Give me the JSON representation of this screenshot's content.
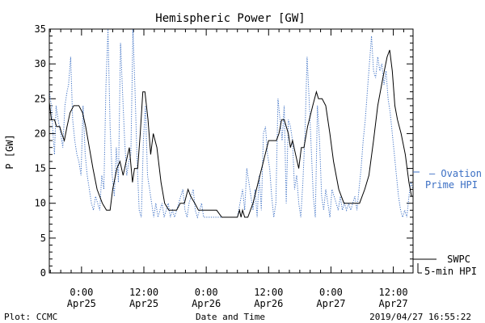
{
  "chart_data": {
    "type": "line",
    "title": "Hemispheric Power [GW]",
    "ylabel": "P [GW]",
    "xlabel": "Date and Time",
    "ylim": [
      0,
      35
    ],
    "yticks": [
      0,
      5,
      10,
      15,
      20,
      25,
      30,
      35
    ],
    "xlim_hours": [
      -6.2,
      63.8
    ],
    "xticks": [
      {
        "hour": 0,
        "time": "0:00",
        "date": "Apr25"
      },
      {
        "hour": 12,
        "time": "12:00",
        "date": "Apr25"
      },
      {
        "hour": 24,
        "time": "0:00",
        "date": "Apr26"
      },
      {
        "hour": 36,
        "time": "12:00",
        "date": "Apr26"
      },
      {
        "hour": 48,
        "time": "0:00",
        "date": "Apr27"
      },
      {
        "hour": 60,
        "time": "12:00",
        "date": "Apr27"
      }
    ],
    "x_minor_step_hours": 2,
    "y_minor_step": 1,
    "series": [
      {
        "name": "SWPC 5-min HPI",
        "color": "#000000",
        "style": "solid",
        "points": [
          [
            -6.2,
            24.5
          ],
          [
            -5.8,
            22
          ],
          [
            -5.2,
            22
          ],
          [
            -4.8,
            21
          ],
          [
            -4.2,
            21
          ],
          [
            -3.8,
            20
          ],
          [
            -3.3,
            19
          ],
          [
            -2.8,
            21
          ],
          [
            -2.2,
            23
          ],
          [
            -1.5,
            24
          ],
          [
            -0.5,
            24
          ],
          [
            0.2,
            23
          ],
          [
            0.8,
            21
          ],
          [
            1.5,
            18
          ],
          [
            2.2,
            15
          ],
          [
            3,
            12
          ],
          [
            4,
            10
          ],
          [
            4.8,
            9
          ],
          [
            5.5,
            9
          ],
          [
            6,
            12
          ],
          [
            6.8,
            15
          ],
          [
            7.4,
            16
          ],
          [
            8,
            14
          ],
          [
            8.6,
            16
          ],
          [
            9.2,
            18
          ],
          [
            9.8,
            13
          ],
          [
            10.2,
            15
          ],
          [
            10.8,
            15
          ],
          [
            11.3,
            20
          ],
          [
            11.8,
            26
          ],
          [
            12.2,
            26
          ],
          [
            12.8,
            22
          ],
          [
            13.3,
            17
          ],
          [
            13.8,
            20
          ],
          [
            14.5,
            18
          ],
          [
            15.3,
            13
          ],
          [
            16,
            10
          ],
          [
            16.8,
            9
          ],
          [
            17.6,
            9
          ],
          [
            18.3,
            9
          ],
          [
            19,
            10
          ],
          [
            19.8,
            10
          ],
          [
            20.5,
            12
          ],
          [
            21,
            11
          ],
          [
            21.8,
            10
          ],
          [
            22.5,
            9
          ],
          [
            24,
            9
          ],
          [
            26,
            9
          ],
          [
            27,
            8
          ],
          [
            29,
            8
          ],
          [
            30,
            8
          ],
          [
            30.4,
            9
          ],
          [
            30.7,
            8
          ],
          [
            31,
            9
          ],
          [
            31.4,
            8
          ],
          [
            32,
            8
          ],
          [
            33,
            10
          ],
          [
            34,
            13
          ],
          [
            35,
            16
          ],
          [
            36,
            19
          ],
          [
            37.5,
            19
          ],
          [
            38,
            20
          ],
          [
            38.5,
            22
          ],
          [
            39,
            22
          ],
          [
            39.8,
            20
          ],
          [
            40.2,
            18
          ],
          [
            40.6,
            19
          ],
          [
            41.2,
            17
          ],
          [
            41.8,
            15
          ],
          [
            42.3,
            18
          ],
          [
            42.8,
            18
          ],
          [
            43.5,
            21
          ],
          [
            44.5,
            24
          ],
          [
            45.2,
            26
          ],
          [
            45.6,
            25
          ],
          [
            46.3,
            25
          ],
          [
            47,
            24
          ],
          [
            47.8,
            20
          ],
          [
            48.5,
            16
          ],
          [
            49.5,
            12
          ],
          [
            50.5,
            10
          ],
          [
            52,
            10
          ],
          [
            53.5,
            10
          ],
          [
            54.5,
            12
          ],
          [
            55.3,
            14
          ],
          [
            56.2,
            19
          ],
          [
            57,
            24
          ],
          [
            58,
            28
          ],
          [
            58.8,
            31
          ],
          [
            59.3,
            32
          ],
          [
            59.8,
            29
          ],
          [
            60.3,
            24
          ],
          [
            60.8,
            22
          ],
          [
            61.5,
            20
          ],
          [
            62.3,
            17
          ],
          [
            63,
            13
          ],
          [
            63.5,
            11
          ],
          [
            63.8,
            11
          ]
        ]
      },
      {
        "name": "Ovation Prime HPI",
        "color": "#3b6fc4",
        "style": "dotted",
        "points": [
          [
            -6.2,
            26
          ],
          [
            -5.8,
            24
          ],
          [
            -5.5,
            20
          ],
          [
            -5.2,
            17
          ],
          [
            -4.9,
            24
          ],
          [
            -4.5,
            22
          ],
          [
            -4,
            20
          ],
          [
            -3.6,
            18
          ],
          [
            -3.2,
            24
          ],
          [
            -2.8,
            26
          ],
          [
            -2.5,
            27
          ],
          [
            -2.1,
            31
          ],
          [
            -1.7,
            22
          ],
          [
            -1.3,
            19
          ],
          [
            -0.9,
            17
          ],
          [
            -0.5,
            16
          ],
          [
            -0.1,
            14
          ],
          [
            0.3,
            24
          ],
          [
            0.7,
            17
          ],
          [
            1.1,
            14
          ],
          [
            1.5,
            12
          ],
          [
            1.9,
            10
          ],
          [
            2.3,
            9
          ],
          [
            2.7,
            11
          ],
          [
            3.1,
            10
          ],
          [
            3.5,
            9
          ],
          [
            3.9,
            14
          ],
          [
            4.3,
            12
          ],
          [
            4.7,
            27
          ],
          [
            5.1,
            35
          ],
          [
            5.5,
            21
          ],
          [
            5.9,
            14
          ],
          [
            6.3,
            11
          ],
          [
            6.7,
            18
          ],
          [
            7.1,
            13
          ],
          [
            7.5,
            33
          ],
          [
            7.9,
            26
          ],
          [
            8.3,
            19
          ],
          [
            8.7,
            14
          ],
          [
            9.1,
            16
          ],
          [
            9.5,
            17
          ],
          [
            9.9,
            35
          ],
          [
            10.3,
            26
          ],
          [
            10.7,
            16
          ],
          [
            11.1,
            9
          ],
          [
            11.5,
            8
          ],
          [
            11.9,
            19
          ],
          [
            12.3,
            24
          ],
          [
            12.7,
            14
          ],
          [
            13.1,
            12
          ],
          [
            13.5,
            10
          ],
          [
            13.9,
            8
          ],
          [
            14.3,
            10
          ],
          [
            14.7,
            8
          ],
          [
            15.1,
            9
          ],
          [
            15.5,
            10
          ],
          [
            15.9,
            8
          ],
          [
            16.3,
            9
          ],
          [
            16.7,
            10
          ],
          [
            17.1,
            8
          ],
          [
            17.5,
            9
          ],
          [
            17.9,
            8
          ],
          [
            18.3,
            9
          ],
          [
            18.7,
            10
          ],
          [
            19.1,
            11
          ],
          [
            19.5,
            12
          ],
          [
            19.9,
            9
          ],
          [
            20.3,
            8
          ],
          [
            20.7,
            10
          ],
          [
            21.1,
            11
          ],
          [
            21.5,
            12
          ],
          [
            21.9,
            9
          ],
          [
            22.3,
            8
          ],
          [
            22.7,
            9
          ],
          [
            23.1,
            10
          ],
          [
            23.5,
            8
          ],
          [
            24,
            8
          ],
          [
            26,
            8
          ],
          [
            28,
            8
          ],
          [
            30,
            8
          ],
          [
            30.5,
            10
          ],
          [
            31,
            12
          ],
          [
            31.4,
            9
          ],
          [
            31.8,
            15
          ],
          [
            32.2,
            13
          ],
          [
            32.6,
            11
          ],
          [
            33,
            9
          ],
          [
            33.4,
            12
          ],
          [
            33.8,
            8
          ],
          [
            34.2,
            14
          ],
          [
            34.6,
            9
          ],
          [
            35,
            20
          ],
          [
            35.4,
            21
          ],
          [
            35.8,
            17
          ],
          [
            36.2,
            15
          ],
          [
            36.6,
            11
          ],
          [
            37,
            8
          ],
          [
            37.4,
            10
          ],
          [
            37.8,
            25
          ],
          [
            38.2,
            22
          ],
          [
            38.6,
            19
          ],
          [
            39,
            24
          ],
          [
            39.4,
            10
          ],
          [
            39.8,
            22
          ],
          [
            40.2,
            21
          ],
          [
            40.6,
            19
          ],
          [
            41,
            12
          ],
          [
            41.4,
            14
          ],
          [
            41.8,
            10
          ],
          [
            42.2,
            8
          ],
          [
            42.6,
            13
          ],
          [
            43,
            20
          ],
          [
            43.4,
            31
          ],
          [
            43.8,
            25
          ],
          [
            44.2,
            18
          ],
          [
            44.6,
            11
          ],
          [
            45,
            8
          ],
          [
            45.4,
            24
          ],
          [
            45.8,
            19
          ],
          [
            46.2,
            11
          ],
          [
            46.6,
            9
          ],
          [
            47,
            12
          ],
          [
            47.4,
            10
          ],
          [
            47.8,
            8
          ],
          [
            48.2,
            12
          ],
          [
            48.6,
            11
          ],
          [
            49,
            10
          ],
          [
            49.4,
            9
          ],
          [
            49.8,
            11
          ],
          [
            50.2,
            9
          ],
          [
            50.6,
            10
          ],
          [
            51,
            9
          ],
          [
            51.4,
            10
          ],
          [
            51.8,
            9
          ],
          [
            52.2,
            10
          ],
          [
            52.6,
            11
          ],
          [
            53,
            9
          ],
          [
            53.4,
            12
          ],
          [
            53.8,
            15
          ],
          [
            54.2,
            19
          ],
          [
            54.6,
            22
          ],
          [
            55,
            26
          ],
          [
            55.4,
            30
          ],
          [
            55.8,
            34
          ],
          [
            56.2,
            29
          ],
          [
            56.6,
            28
          ],
          [
            57,
            31
          ],
          [
            57.4,
            29
          ],
          [
            57.8,
            30
          ],
          [
            58.2,
            27
          ],
          [
            58.6,
            29
          ],
          [
            59,
            25
          ],
          [
            59.4,
            23
          ],
          [
            59.8,
            20
          ],
          [
            60.2,
            17
          ],
          [
            60.6,
            14
          ],
          [
            61,
            11
          ],
          [
            61.4,
            9
          ],
          [
            61.8,
            8
          ],
          [
            62.2,
            9
          ],
          [
            62.6,
            8
          ],
          [
            63,
            11
          ],
          [
            63.4,
            13
          ],
          [
            63.8,
            12
          ]
        ]
      }
    ],
    "legend": [
      {
        "series": 0,
        "line1": "SWPC",
        "line2": "5-min HPI"
      },
      {
        "series": 1,
        "line1": "— Ovation",
        "line2": "Prime HPI"
      }
    ],
    "legend_position": "right",
    "grid": false
  },
  "footer": {
    "left": "Plot: CCMC",
    "center": "Date and Time",
    "right": "2019/04/27 16:55:22"
  }
}
